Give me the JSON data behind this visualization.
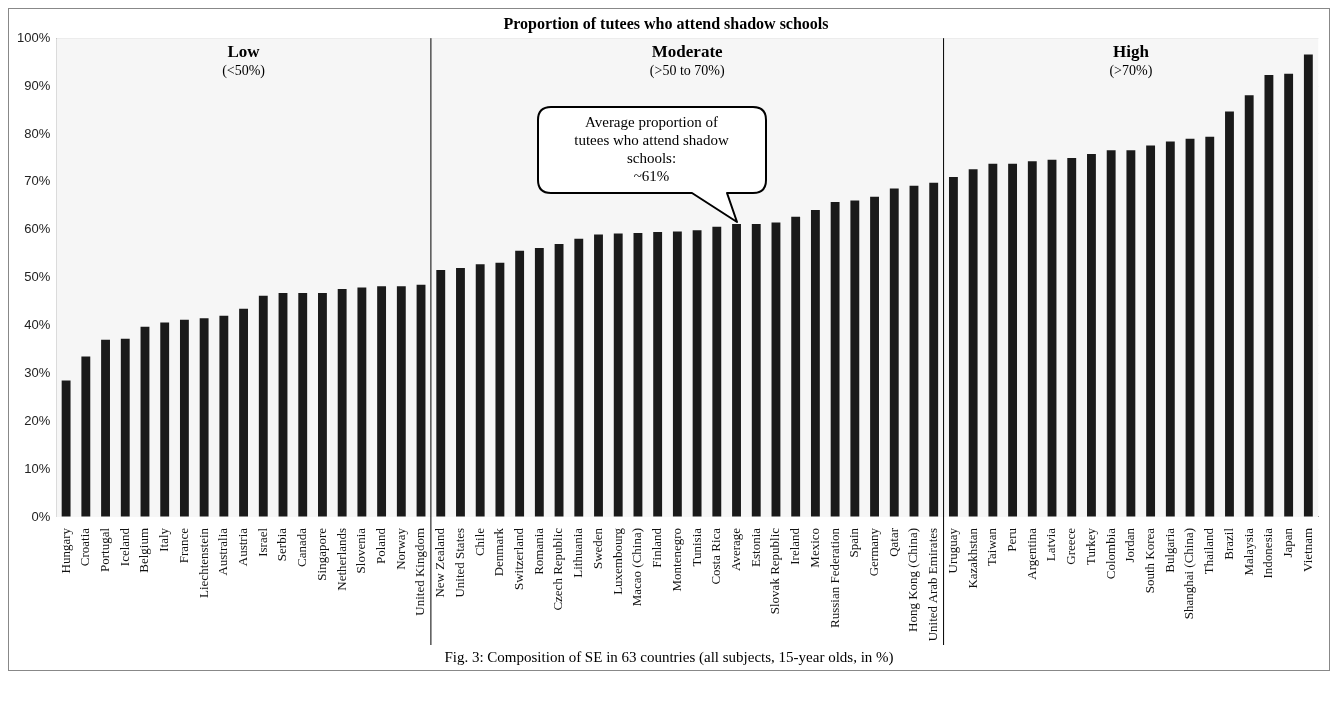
{
  "chart_data": {
    "type": "bar",
    "title": "Proportion of tutees who attend shadow schools",
    "categories": [
      "Hungary",
      "Croatia",
      "Portugal",
      "Iceland",
      "Belgium",
      "Italy",
      "France",
      "Liechtenstein",
      "Australia",
      "Austria",
      "Israel",
      "Serbia",
      "Canada",
      "Singapore",
      "Netherlands",
      "Slovenia",
      "Poland",
      "Norway",
      "United Kingdom",
      "New Zealand",
      "United States",
      "Chile",
      "Denmark",
      "Switzerland",
      "Romania",
      "Czech Republic",
      "Lithuania",
      "Sweden",
      "Luxembourg",
      "Macao (China)",
      "Finland",
      "Montenegro",
      "Tunisia",
      "Costa Rica",
      "Average",
      "Estonia",
      "Slovak Republic",
      "Ireland",
      "Mexico",
      "Russian Federation",
      "Spain",
      "Germany",
      "Qatar",
      "Hong Kong (China)",
      "United Arab Emirates",
      "Uruguay",
      "Kazakhstan",
      "Taiwan",
      "Peru",
      "Argentina",
      "Latvia",
      "Greece",
      "Turkey",
      "Colombia",
      "Jordan",
      "South Korea",
      "Bulgaria",
      "Shanghai (China)",
      "Thailand",
      "Brazil",
      "Malaysia",
      "Indonesia",
      "Japan",
      "Vietnam"
    ],
    "values": [
      28.5,
      33.5,
      37,
      37.2,
      39.7,
      40.6,
      41.2,
      41.5,
      42,
      43.5,
      46.2,
      46.8,
      46.8,
      46.8,
      47.6,
      47.9,
      48.2,
      48.2,
      48.5,
      51.6,
      52,
      52.8,
      53.1,
      55.6,
      56.2,
      57,
      58.1,
      59,
      59.2,
      59.3,
      59.5,
      59.6,
      59.9,
      60.6,
      61.2,
      61.2,
      61.5,
      62.7,
      64.1,
      65.8,
      66.1,
      66.9,
      68.6,
      69.2,
      69.8,
      71,
      72.6,
      73.8,
      73.8,
      74.3,
      74.6,
      75,
      75.8,
      76.6,
      76.6,
      77.6,
      78.4,
      79,
      79.4,
      84.7,
      88.1,
      92.3,
      92.6,
      96.6
    ],
    "color": "#1a1a1a",
    "ylim": [
      0,
      100
    ],
    "yticks": [
      {
        "value": 0,
        "label": "0%"
      },
      {
        "value": 10,
        "label": "10%"
      },
      {
        "value": 20,
        "label": "20%"
      },
      {
        "value": 30,
        "label": "30%"
      },
      {
        "value": 40,
        "label": "40%"
      },
      {
        "value": 50,
        "label": "50%"
      },
      {
        "value": 60,
        "label": "60%"
      },
      {
        "value": 70,
        "label": "70%"
      },
      {
        "value": 80,
        "label": "80%"
      },
      {
        "value": 90,
        "label": "90%"
      },
      {
        "value": 100,
        "label": "100%"
      }
    ],
    "grid": "y",
    "legend": false,
    "bands": [
      {
        "axis": "x",
        "from": "Hungary",
        "to": "United Kingdom",
        "label": "Low\n(<50%)",
        "color": "#f6f6f6"
      },
      {
        "axis": "x",
        "from": "New Zealand",
        "to": "United Arab Emirates",
        "label": "Moderate\n(>50 to 70%)",
        "color": "#f6f6f6"
      },
      {
        "axis": "x",
        "from": "Uruguay",
        "to": "Vietnam",
        "label": "High\n(>70%)",
        "color": "#f6f6f6"
      }
    ],
    "annotations": [
      {
        "text": "Average proportion of\ntutees who attend shadow\nschools:\n~61%",
        "x": "Average",
        "y": 61.2
      },
      "Fig. 3: Composition of SE in 63 countries (all subjects, 15-year olds, in %)"
    ]
  }
}
